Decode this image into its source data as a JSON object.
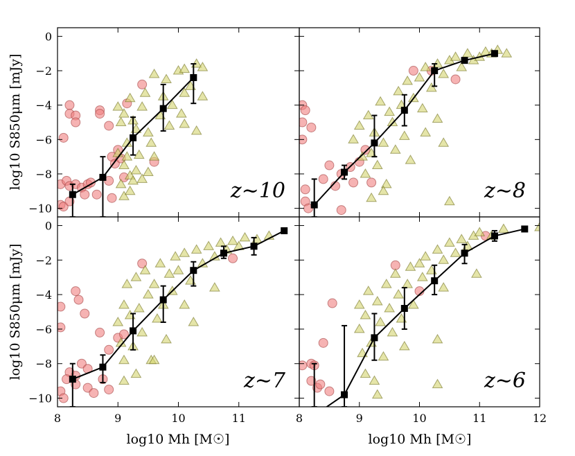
{
  "chart_data": {
    "type": "scatter",
    "layout": "2x2 grid, shared axes",
    "xlabel": "log10 Mh [M☉]",
    "ylabel": "log10 S850μm [mJy]",
    "xlim": [
      8,
      12
    ],
    "ylim": [
      -10.5,
      0.5
    ],
    "xticks": [
      "8",
      "9",
      "10",
      "11",
      "12"
    ],
    "yticks": [
      "0",
      "-2",
      "-4",
      "-6",
      "-8",
      "-10"
    ],
    "grid": false,
    "colors": {
      "circles": "#f08080",
      "triangles": "#d4d470",
      "binned": "#000000"
    },
    "panels": [
      {
        "label": "z∼10",
        "binned": {
          "x": [
            8.25,
            8.75,
            9.25,
            9.75,
            10.25
          ],
          "y": [
            -9.2,
            -8.2,
            -5.9,
            -4.2,
            -2.4
          ],
          "err_lo": [
            -10.5,
            -10.5,
            -6.9,
            -5.5,
            -3.9
          ],
          "err_hi": [
            -8.6,
            -7.0,
            -4.7,
            -2.8,
            -1.6
          ]
        },
        "circles": [
          [
            8.05,
            -9.8
          ],
          [
            8.1,
            -9.9
          ],
          [
            8.05,
            -8.6
          ],
          [
            8.15,
            -8.4
          ],
          [
            8.2,
            -8.7
          ],
          [
            8.3,
            -8.6
          ],
          [
            8.4,
            -8.8
          ],
          [
            8.5,
            -8.6
          ],
          [
            8.55,
            -8.5
          ],
          [
            8.1,
            -5.9
          ],
          [
            8.2,
            -4.0
          ],
          [
            8.2,
            -4.5
          ],
          [
            8.3,
            -4.6
          ],
          [
            8.3,
            -5.0
          ],
          [
            8.7,
            -4.3
          ],
          [
            8.7,
            -4.5
          ],
          [
            8.85,
            -5.2
          ],
          [
            8.9,
            -7.0
          ],
          [
            8.95,
            -7.4
          ],
          [
            8.85,
            -8.4
          ],
          [
            8.9,
            -9.4
          ],
          [
            8.65,
            -9.2
          ],
          [
            8.45,
            -9.2
          ],
          [
            8.2,
            -9.6
          ],
          [
            9.0,
            -6.6
          ],
          [
            9.05,
            -7.1
          ],
          [
            9.1,
            -8.2
          ],
          [
            9.4,
            -2.8
          ],
          [
            9.15,
            -3.9
          ],
          [
            9.6,
            -7.3
          ]
        ],
        "triangles": [
          [
            9.0,
            -4.1
          ],
          [
            9.05,
            -5.0
          ],
          [
            9.1,
            -4.5
          ],
          [
            9.15,
            -6.2
          ],
          [
            9.0,
            -6.8
          ],
          [
            9.1,
            -7.5
          ],
          [
            9.2,
            -8.1
          ],
          [
            9.05,
            -8.6
          ],
          [
            9.1,
            -9.3
          ],
          [
            9.2,
            -3.6
          ],
          [
            9.25,
            -4.9
          ],
          [
            9.3,
            -5.4
          ],
          [
            9.35,
            -6.9
          ],
          [
            9.3,
            -7.8
          ],
          [
            9.4,
            -4.1
          ],
          [
            9.45,
            -3.3
          ],
          [
            9.5,
            -5.6
          ],
          [
            9.55,
            -6.2
          ],
          [
            9.6,
            -7.0
          ],
          [
            9.5,
            -7.9
          ],
          [
            9.7,
            -4.6
          ],
          [
            9.75,
            -3.5
          ],
          [
            9.8,
            -2.5
          ],
          [
            9.85,
            -5.2
          ],
          [
            9.9,
            -4.0
          ],
          [
            9.6,
            -2.2
          ],
          [
            10.0,
            -2.0
          ],
          [
            10.1,
            -1.9
          ],
          [
            10.2,
            -2.9
          ],
          [
            10.3,
            -1.6
          ],
          [
            10.4,
            -1.8
          ],
          [
            10.1,
            -3.3
          ],
          [
            10.4,
            -3.5
          ],
          [
            10.05,
            -4.5
          ],
          [
            10.1,
            -5.1
          ],
          [
            10.3,
            -5.5
          ],
          [
            9.2,
            -9.0
          ],
          [
            9.15,
            -7.0
          ],
          [
            9.25,
            -8.4
          ],
          [
            9.4,
            -8.3
          ]
        ]
      },
      {
        "label": "z∼8",
        "binned": {
          "x": [
            8.25,
            8.75,
            9.25,
            9.75,
            10.25,
            10.75,
            11.25
          ],
          "y": [
            -9.8,
            -7.9,
            -6.2,
            -4.3,
            -2.0,
            -1.4,
            -1.0
          ],
          "err_lo": [
            -10.5,
            -8.3,
            -7.0,
            -5.2,
            -2.9,
            -1.5,
            -1.1
          ],
          "err_hi": [
            -8.3,
            -7.5,
            -4.6,
            -3.4,
            -1.6,
            -1.3,
            -0.9
          ]
        },
        "circles": [
          [
            8.05,
            -4.0
          ],
          [
            8.1,
            -4.3
          ],
          [
            8.05,
            -5.0
          ],
          [
            8.05,
            -6.0
          ],
          [
            8.2,
            -5.3
          ],
          [
            8.1,
            -8.9
          ],
          [
            8.1,
            -9.6
          ],
          [
            8.15,
            -10.0
          ],
          [
            8.5,
            -7.5
          ],
          [
            8.4,
            -8.3
          ],
          [
            8.6,
            -8.7
          ],
          [
            8.7,
            -8.0
          ],
          [
            8.85,
            -7.6
          ],
          [
            8.9,
            -8.5
          ],
          [
            8.7,
            -10.1
          ],
          [
            9.0,
            -7.3
          ],
          [
            9.1,
            -6.6
          ],
          [
            9.2,
            -8.5
          ],
          [
            9.9,
            -2.0
          ],
          [
            10.2,
            -2.0
          ],
          [
            10.6,
            -2.5
          ]
        ],
        "triangles": [
          [
            8.9,
            -6.0
          ],
          [
            9.0,
            -5.2
          ],
          [
            9.05,
            -7.0
          ],
          [
            9.1,
            -8.0
          ],
          [
            9.15,
            -4.6
          ],
          [
            9.2,
            -6.8
          ],
          [
            9.25,
            -5.6
          ],
          [
            9.3,
            -7.5
          ],
          [
            9.35,
            -3.8
          ],
          [
            9.4,
            -6.2
          ],
          [
            9.45,
            -8.6
          ],
          [
            9.5,
            -4.4
          ],
          [
            9.55,
            -5.0
          ],
          [
            9.6,
            -6.6
          ],
          [
            9.65,
            -3.2
          ],
          [
            9.7,
            -4.0
          ],
          [
            9.75,
            -5.8
          ],
          [
            9.8,
            -2.6
          ],
          [
            9.85,
            -7.2
          ],
          [
            9.9,
            -3.6
          ],
          [
            10.0,
            -2.4
          ],
          [
            10.05,
            -4.2
          ],
          [
            10.1,
            -1.8
          ],
          [
            10.2,
            -3.0
          ],
          [
            10.3,
            -1.6
          ],
          [
            10.4,
            -2.2
          ],
          [
            10.5,
            -1.4
          ],
          [
            10.6,
            -1.2
          ],
          [
            10.7,
            -1.8
          ],
          [
            10.8,
            -1.0
          ],
          [
            10.9,
            -1.4
          ],
          [
            11.0,
            -1.2
          ],
          [
            11.1,
            -0.9
          ],
          [
            11.2,
            -1.0
          ],
          [
            11.3,
            -0.8
          ],
          [
            11.45,
            -1.0
          ],
          [
            10.3,
            -4.8
          ],
          [
            10.1,
            -5.6
          ],
          [
            10.4,
            -6.2
          ],
          [
            10.5,
            -9.6
          ],
          [
            9.2,
            -9.4
          ],
          [
            9.4,
            -9.0
          ]
        ]
      },
      {
        "label": "z∼7",
        "binned": {
          "x": [
            8.25,
            8.75,
            9.25,
            9.75,
            10.25,
            10.75,
            11.25,
            11.75
          ],
          "y": [
            -8.9,
            -8.2,
            -6.1,
            -4.3,
            -2.6,
            -1.6,
            -1.2,
            -0.3
          ],
          "err_lo": [
            -10.5,
            -9.1,
            -7.2,
            -5.6,
            -3.5,
            -1.9,
            -1.7,
            -0.3
          ],
          "err_hi": [
            -8.0,
            -7.5,
            -5.1,
            -3.5,
            -2.1,
            -1.2,
            -0.7,
            -0.3
          ]
        },
        "circles": [
          [
            8.05,
            -4.7
          ],
          [
            8.05,
            -5.9
          ],
          [
            8.05,
            -9.6
          ],
          [
            8.1,
            -10.0
          ],
          [
            8.2,
            -8.5
          ],
          [
            8.15,
            -8.9
          ],
          [
            8.3,
            -8.7
          ],
          [
            8.3,
            -9.2
          ],
          [
            8.4,
            -8.0
          ],
          [
            8.5,
            -9.4
          ],
          [
            8.6,
            -9.7
          ],
          [
            8.3,
            -3.8
          ],
          [
            8.35,
            -4.3
          ],
          [
            8.5,
            -8.3
          ],
          [
            8.75,
            -8.9
          ],
          [
            8.85,
            -7.2
          ],
          [
            8.85,
            -9.5
          ],
          [
            9.0,
            -6.5
          ],
          [
            9.1,
            -6.3
          ],
          [
            8.45,
            -5.1
          ],
          [
            9.4,
            -2.2
          ],
          [
            10.9,
            -1.9
          ],
          [
            8.7,
            -6.2
          ]
        ],
        "triangles": [
          [
            9.0,
            -5.6
          ],
          [
            9.05,
            -6.8
          ],
          [
            9.1,
            -4.6
          ],
          [
            9.1,
            -7.8
          ],
          [
            9.15,
            -3.4
          ],
          [
            9.2,
            -5.2
          ],
          [
            9.25,
            -7.0
          ],
          [
            9.3,
            -3.0
          ],
          [
            9.35,
            -4.8
          ],
          [
            9.4,
            -6.2
          ],
          [
            9.45,
            -2.6
          ],
          [
            9.5,
            -4.0
          ],
          [
            9.55,
            -7.8
          ],
          [
            9.6,
            -3.4
          ],
          [
            9.65,
            -5.4
          ],
          [
            9.7,
            -2.2
          ],
          [
            9.75,
            -4.6
          ],
          [
            9.8,
            -6.6
          ],
          [
            9.85,
            -2.8
          ],
          [
            9.9,
            -3.8
          ],
          [
            9.95,
            -1.8
          ],
          [
            10.0,
            -2.6
          ],
          [
            10.1,
            -1.6
          ],
          [
            10.2,
            -3.2
          ],
          [
            10.3,
            -1.4
          ],
          [
            10.4,
            -2.2
          ],
          [
            10.5,
            -1.2
          ],
          [
            10.6,
            -1.8
          ],
          [
            10.7,
            -1.0
          ],
          [
            10.8,
            -1.4
          ],
          [
            10.9,
            -0.9
          ],
          [
            11.0,
            -1.2
          ],
          [
            11.1,
            -0.7
          ],
          [
            11.3,
            -0.8
          ],
          [
            11.5,
            -0.6
          ],
          [
            10.25,
            -5.6
          ],
          [
            10.1,
            -4.6
          ],
          [
            10.6,
            -3.6
          ],
          [
            9.3,
            -8.6
          ],
          [
            9.1,
            -9.0
          ],
          [
            9.6,
            -7.8
          ]
        ]
      },
      {
        "label": "z∼6",
        "binned": {
          "x": [
            8.25,
            8.75,
            9.25,
            9.75,
            10.25,
            10.75,
            11.25,
            11.75
          ],
          "y": [
            -11.0,
            -9.8,
            -6.5,
            -4.8,
            -3.2,
            -1.6,
            -0.6,
            -0.2
          ],
          "err_lo": [
            -10.5,
            -10.5,
            -7.8,
            -6.0,
            -4.0,
            -2.2,
            -0.9,
            -0.2
          ],
          "err_hi": [
            -8.0,
            -5.8,
            -5.1,
            -3.6,
            -2.3,
            -1.1,
            -0.3,
            -0.2
          ]
        },
        "circles": [
          [
            8.05,
            -8.1
          ],
          [
            8.2,
            -8.0
          ],
          [
            8.25,
            -8.1
          ],
          [
            8.2,
            -9.0
          ],
          [
            8.3,
            -9.4
          ],
          [
            8.35,
            -9.2
          ],
          [
            8.5,
            -9.6
          ],
          [
            8.4,
            -6.8
          ],
          [
            8.55,
            -4.5
          ],
          [
            9.6,
            -2.3
          ],
          [
            10.0,
            -3.8
          ],
          [
            11.1,
            -0.6
          ]
        ],
        "triangles": [
          [
            9.0,
            -4.6
          ],
          [
            9.0,
            -6.0
          ],
          [
            9.05,
            -7.4
          ],
          [
            9.1,
            -8.6
          ],
          [
            9.1,
            -5.2
          ],
          [
            9.15,
            -3.8
          ],
          [
            9.2,
            -6.8
          ],
          [
            9.25,
            -9.0
          ],
          [
            9.3,
            -4.4
          ],
          [
            9.35,
            -5.6
          ],
          [
            9.4,
            -7.6
          ],
          [
            9.45,
            -3.4
          ],
          [
            9.5,
            -4.8
          ],
          [
            9.55,
            -6.2
          ],
          [
            9.6,
            -2.8
          ],
          [
            9.65,
            -4.0
          ],
          [
            9.7,
            -5.4
          ],
          [
            9.75,
            -7.0
          ],
          [
            9.8,
            -3.4
          ],
          [
            9.85,
            -2.4
          ],
          [
            9.9,
            -4.6
          ],
          [
            10.0,
            -2.2
          ],
          [
            10.05,
            -3.0
          ],
          [
            10.1,
            -1.8
          ],
          [
            10.2,
            -2.6
          ],
          [
            10.3,
            -1.4
          ],
          [
            10.4,
            -2.0
          ],
          [
            10.5,
            -1.0
          ],
          [
            10.6,
            -1.6
          ],
          [
            10.7,
            -0.8
          ],
          [
            10.8,
            -1.2
          ],
          [
            10.9,
            -0.6
          ],
          [
            10.95,
            -2.8
          ],
          [
            11.0,
            -0.4
          ],
          [
            11.2,
            -0.6
          ],
          [
            11.4,
            -0.2
          ],
          [
            12.0,
            -0.1
          ],
          [
            10.3,
            -6.6
          ],
          [
            10.3,
            -9.2
          ],
          [
            10.4,
            -3.6
          ],
          [
            9.3,
            -9.8
          ]
        ]
      }
    ]
  }
}
